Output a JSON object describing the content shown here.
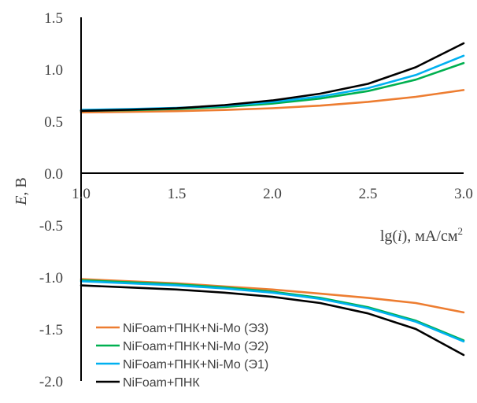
{
  "chart_data": {
    "type": "line",
    "title": "",
    "xlabel_parts": [
      "lg(",
      "i",
      "), мА/см",
      "2"
    ],
    "ylabel_parts": [
      "E",
      ", В"
    ],
    "xlim": [
      1.0,
      3.0
    ],
    "ylim": [
      -2.0,
      1.5
    ],
    "x_ticks": [
      "1.0",
      "1.5",
      "2.0",
      "2.5",
      "3.0"
    ],
    "y_ticks": [
      "1.5",
      "1.0",
      "0.5",
      "0.0",
      "-0.5",
      "-1.0",
      "-1.5",
      "-2.0"
    ],
    "grid": false,
    "legend_position": "bottom-left",
    "series": [
      {
        "name": "NiFoam+ПНК+Ni-Mo (Э3)",
        "color": "#ED7D31",
        "anodic": {
          "x": [
            1.0,
            1.25,
            1.5,
            1.75,
            2.0,
            2.25,
            2.5,
            2.75,
            3.0
          ],
          "y": [
            0.585,
            0.59,
            0.597,
            0.608,
            0.625,
            0.65,
            0.686,
            0.735,
            0.8
          ]
        },
        "cathodic": {
          "x": [
            1.0,
            1.25,
            1.5,
            1.75,
            2.0,
            2.25,
            2.5,
            2.75,
            3.0
          ],
          "y": [
            -1.02,
            -1.04,
            -1.06,
            -1.09,
            -1.12,
            -1.16,
            -1.2,
            -1.25,
            -1.34
          ]
        }
      },
      {
        "name": "NiFoam+ПНК+Ni-Mo (Э2)",
        "color": "#00B050",
        "anodic": {
          "x": [
            1.0,
            1.25,
            1.5,
            1.75,
            2.0,
            2.25,
            2.5,
            2.75,
            3.0
          ],
          "y": [
            0.6,
            0.607,
            0.618,
            0.637,
            0.67,
            0.718,
            0.79,
            0.9,
            1.06
          ]
        },
        "cathodic": {
          "x": [
            1.0,
            1.25,
            1.5,
            1.75,
            2.0,
            2.25,
            2.5,
            2.75,
            3.0
          ],
          "y": [
            -1.03,
            -1.05,
            -1.07,
            -1.1,
            -1.14,
            -1.2,
            -1.29,
            -1.42,
            -1.61
          ]
        }
      },
      {
        "name": "NiFoam+ПНК+Ni-Mo (Э1)",
        "color": "#00B0F0",
        "anodic": {
          "x": [
            1.0,
            1.25,
            1.5,
            1.75,
            2.0,
            2.25,
            2.5,
            2.75,
            3.0
          ],
          "y": [
            0.61,
            0.617,
            0.628,
            0.648,
            0.685,
            0.738,
            0.818,
            0.945,
            1.13
          ]
        },
        "cathodic": {
          "x": [
            1.0,
            1.25,
            1.5,
            1.75,
            2.0,
            2.25,
            2.5,
            2.75,
            3.0
          ],
          "y": [
            -1.04,
            -1.06,
            -1.08,
            -1.11,
            -1.15,
            -1.21,
            -1.3,
            -1.43,
            -1.62
          ]
        }
      },
      {
        "name": "NiFoam+ПНК",
        "color": "#000000",
        "anodic": {
          "x": [
            1.0,
            1.25,
            1.5,
            1.75,
            2.0,
            2.25,
            2.5,
            2.75,
            3.0
          ],
          "y": [
            0.6,
            0.61,
            0.625,
            0.655,
            0.7,
            0.765,
            0.86,
            1.02,
            1.25
          ]
        },
        "cathodic": {
          "x": [
            1.0,
            1.25,
            1.5,
            1.75,
            2.0,
            2.25,
            2.5,
            2.75,
            3.0
          ],
          "y": [
            -1.08,
            -1.1,
            -1.12,
            -1.15,
            -1.19,
            -1.25,
            -1.35,
            -1.5,
            -1.75
          ]
        }
      }
    ]
  }
}
